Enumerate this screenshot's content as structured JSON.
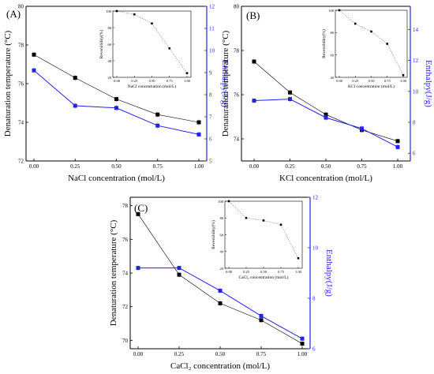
{
  "chart_data": [
    {
      "type": "line",
      "panel_label": "(A)",
      "xlabel": "NaCl concentration  (mol/L)",
      "ylabel": "Denaturation temperature (°C)",
      "y2label": "Enthalpy(J/g)",
      "x": [
        0,
        0.25,
        0.5,
        0.75,
        1.0
      ],
      "x_ticks": [
        "0.00",
        "0.25",
        "0.50",
        "0.75",
        "1.00"
      ],
      "ylim": [
        72,
        80
      ],
      "y_ticks": [
        "72",
        "74",
        "76",
        "78",
        "80"
      ],
      "y2lim": [
        5,
        12
      ],
      "y2_ticks": [
        "5",
        "6",
        "7",
        "8",
        "9",
        "10",
        "11",
        "12"
      ],
      "series": [
        {
          "axis": "left",
          "color": "#000000",
          "values": [
            77.5,
            76.3,
            75.2,
            74.4,
            74.0
          ]
        },
        {
          "axis": "right",
          "color": "#2222ee",
          "values": [
            9.1,
            7.5,
            7.4,
            6.6,
            6.2
          ]
        }
      ],
      "inset": {
        "xlabel": "NaCl concentration  (mol/L)",
        "ylabel": "Reversibility(%)",
        "x": [
          0,
          0.25,
          0.5,
          0.75,
          1.0
        ],
        "x_ticks": [
          "0.00",
          "0.25",
          "0.50",
          "0.75",
          "1.00"
        ],
        "ylim": [
          20,
          100
        ],
        "y_ticks": [
          "20",
          "40",
          "60",
          "80",
          "100"
        ],
        "values": [
          100,
          96,
          85,
          55,
          25
        ]
      }
    },
    {
      "type": "line",
      "panel_label": "(B)",
      "xlabel": "KCl concentration  (mol/L)",
      "ylabel": "Denaturation temperature (°C)",
      "y2label": "Enthalpy(J/g)",
      "x": [
        0,
        0.25,
        0.5,
        0.75,
        1.0
      ],
      "x_ticks": [
        "0.00",
        "0.25",
        "0.50",
        "0.75",
        "1.00"
      ],
      "ylim": [
        73,
        80
      ],
      "y_ticks": [
        "74",
        "76",
        "78",
        "80"
      ],
      "y2lim": [
        5.5,
        15.5
      ],
      "y2_ticks": [
        "6",
        "8",
        "10",
        "12",
        "14"
      ],
      "series": [
        {
          "axis": "left",
          "color": "#000000",
          "values": [
            77.5,
            76.1,
            75.1,
            74.4,
            73.9
          ]
        },
        {
          "axis": "right",
          "color": "#2222ee",
          "values": [
            9.4,
            9.5,
            8.3,
            7.6,
            6.4
          ]
        }
      ],
      "inset": {
        "xlabel": "KCl concentration  (mol/L)",
        "ylabel": "Reversibility(%)",
        "x": [
          0,
          0.25,
          0.5,
          0.75,
          1.0
        ],
        "x_ticks": [
          "0.00",
          "0.25",
          "0.50",
          "0.75",
          "1.00"
        ],
        "ylim": [
          40,
          100
        ],
        "y_ticks": [
          "40",
          "60",
          "80",
          "100"
        ],
        "values": [
          100,
          88,
          81,
          70,
          42
        ]
      }
    },
    {
      "type": "line",
      "panel_label": "(C)",
      "xlabel": "CaCl₂ concentration  (mol/L)",
      "ylabel": "Denaturation temperature (°C)",
      "y2label": "Enthalpy(J/g)",
      "x": [
        0,
        0.25,
        0.5,
        0.75,
        1.0
      ],
      "x_ticks": [
        "0.00",
        "0.25",
        "0.50",
        "0.75",
        "1.00"
      ],
      "ylim": [
        69.5,
        78.5
      ],
      "y_ticks": [
        "70",
        "72",
        "74",
        "76",
        "78"
      ],
      "y2lim": [
        6,
        12
      ],
      "y2_ticks": [
        "6",
        "8",
        "10",
        "12"
      ],
      "series": [
        {
          "axis": "left",
          "color": "#000000",
          "values": [
            77.5,
            73.9,
            72.2,
            71.2,
            69.8
          ]
        },
        {
          "axis": "right",
          "color": "#2222ee",
          "values": [
            9.2,
            9.2,
            8.3,
            7.3,
            6.4
          ]
        }
      ],
      "inset": {
        "xlabel": "CaCl₂ concentration  (mol/L)",
        "ylabel": "Reversibility(%)",
        "x": [
          0,
          0.25,
          0.5,
          0.75,
          1.0
        ],
        "x_ticks": [
          "0.00",
          "0.25",
          "0.50",
          "0.75",
          "1.00"
        ],
        "ylim": [
          20,
          100
        ],
        "y_ticks": [
          "20",
          "40",
          "60",
          "80",
          "100"
        ],
        "values": [
          100,
          80,
          77,
          72,
          32
        ]
      }
    }
  ]
}
